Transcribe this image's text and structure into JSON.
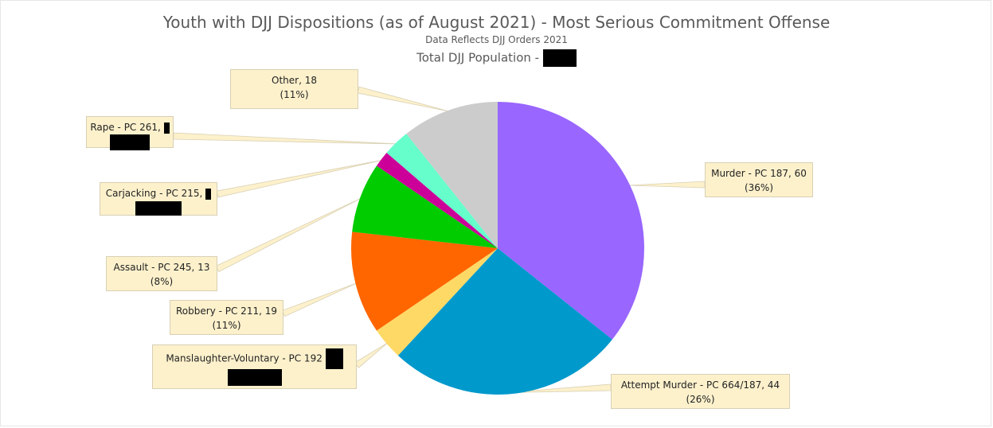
{
  "chart_data": {
    "type": "pie",
    "title": "Youth with DJJ Dispositions (as of August 2021) - Most Serious Commitment Offense",
    "subtitle": "Data Reflects DJJ Orders 2021",
    "subtitle2": "Total DJJ Population -",
    "slices": [
      {
        "label": "Murder - PC 187, 60",
        "pct_label": "(36%)",
        "value": 60,
        "color": "#9966ff"
      },
      {
        "label": "Attempt Murder - PC 664/187, 44",
        "pct_label": "(26%)",
        "value": 44,
        "color": "#0099cc"
      },
      {
        "label": "Manslaughter-Voluntary - PC 192",
        "pct_label": "",
        "value": 6,
        "color": "#ffd966"
      },
      {
        "label": "Robbery - PC 211, 19",
        "pct_label": "(11%)",
        "value": 19,
        "color": "#ff6600"
      },
      {
        "label": "Assault - PC 245, 13",
        "pct_label": "(8%)",
        "value": 13,
        "color": "#00cc00"
      },
      {
        "label": "Carjacking - PC 215,",
        "pct_label": "",
        "value": 3,
        "color": "#cc0099"
      },
      {
        "label": "Rape - PC 261,",
        "pct_label": "",
        "value": 5,
        "color": "#66ffcc"
      },
      {
        "label": "Other, 18",
        "pct_label": "(11%)",
        "value": 18,
        "color": "#cccccc"
      }
    ]
  }
}
